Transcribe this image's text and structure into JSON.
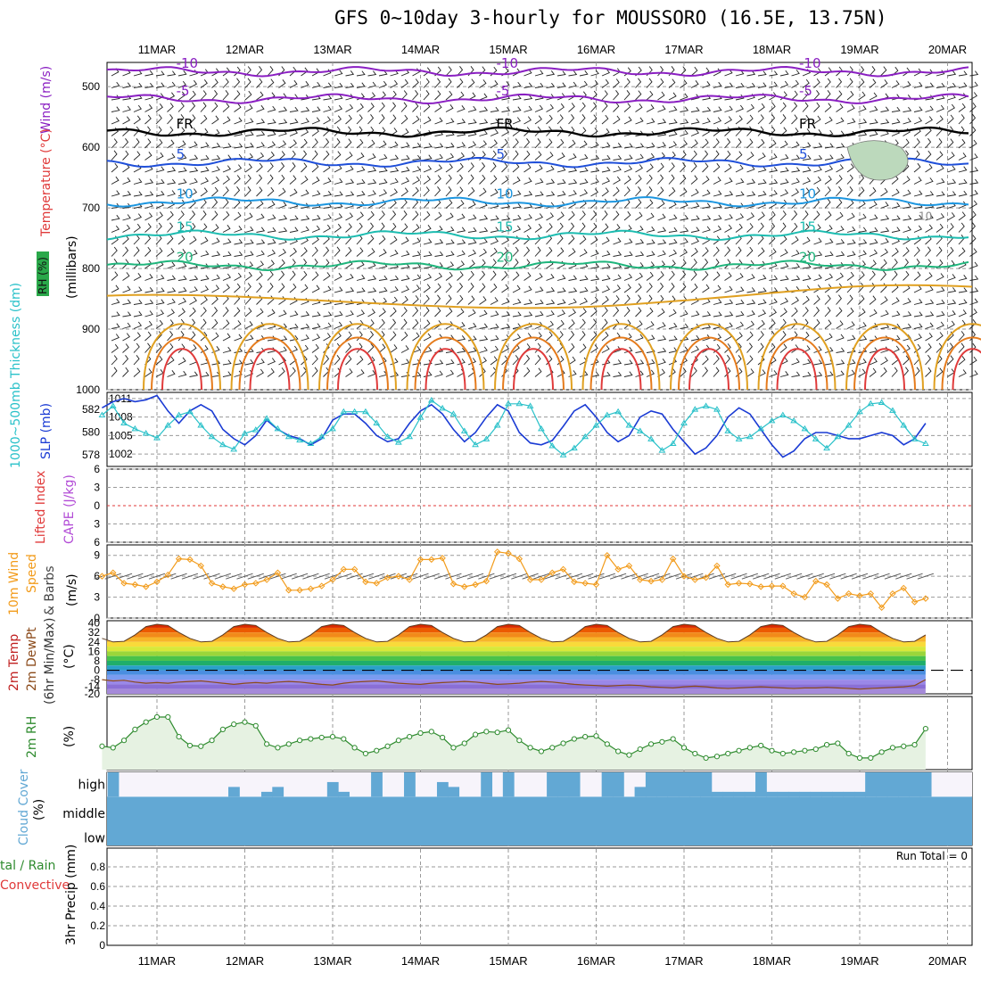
{
  "title": "GFS 0~10day 3-hourly for MOUSSORO (16.5E, 13.75N)",
  "dates": [
    "11MAR",
    "12MAR",
    "13MAR",
    "14MAR",
    "15MAR",
    "16MAR",
    "17MAR",
    "18MAR",
    "19MAR",
    "20MAR"
  ],
  "panel_labels": {
    "wind": "Wind (m/s)",
    "temperature": "Temperature (°C)",
    "rh_upper": "RH (%)",
    "pressure_axis": "(millibars)",
    "thickness": "1000~500mb Thickness (dm)",
    "slp": "SLP (mb)",
    "lifted_index": "Lifted Index",
    "cape": "CAPE (J/kg)",
    "wind10m_a": "10m Wind",
    "wind10m_b": "Speed",
    "wind10m_c": "& Barbs",
    "wind10m_unit": "(m/s)",
    "temp2m_a": "2m Temp",
    "temp2m_b": "2m DewPt",
    "temp2m_c": "(6hr Min/Max)",
    "temp2m_unit": "(°C)",
    "rh2m": "2m RH",
    "rh2m_unit": "(%)",
    "cloud": "Cloud Cover",
    "cloud_unit": "(%)",
    "precip_a": "tal / Rain",
    "precip_b": "Convective",
    "precip_c": "3hr Precip (mm)",
    "run_total": "Run Total = 0"
  },
  "colors": {
    "slp": "#1a3bd4",
    "thickness": "#29c1c9",
    "wind_speed": "#f29b1a",
    "rh2m": "#2e8b2e",
    "cloud": "#62a8d4",
    "minus10": "#8a1fc2",
    "freezing": "#000000",
    "plus5": "#1f4fd9",
    "plus10": "#1c96e0",
    "plus15": "#1cbcb0",
    "plus20": "#1fb57c",
    "plus25": "#e0a020",
    "plus30": "#e57b1c",
    "plus35": "#e03a3a"
  },
  "chart_data": [
    {
      "panel": "upper-air cross section",
      "type": "line",
      "y_axis": "pressure (mb)",
      "yticks": [
        "500",
        "600",
        "700",
        "800",
        "900",
        "1000"
      ],
      "ylim": [
        460,
        1000
      ],
      "temperature_contours": [
        {
          "label": "-10",
          "mean_level_mb": 475
        },
        {
          "label": "-5",
          "mean_level_mb": 520
        },
        {
          "label": "FR",
          "mean_level_mb": 575
        },
        {
          "label": "5",
          "mean_level_mb": 625
        },
        {
          "label": "10",
          "mean_level_mb": 690
        },
        {
          "label": "15",
          "mean_level_mb": 745
        },
        {
          "label": "20",
          "mean_level_mb": 795
        }
      ],
      "rh_contour_label": "10"
    },
    {
      "panel": "SLP and thickness",
      "type": "line",
      "left_axis_ticks": [
        "582",
        "580",
        "578"
      ],
      "right_axis_ticks": [
        "1011",
        "1008",
        "1005",
        "1002"
      ],
      "slp_range": [
        1000,
        1012
      ],
      "thickness_range": [
        577,
        583.5
      ],
      "series": [
        {
          "name": "SLP (mb)",
          "values": [
            1009.5,
            1010.5,
            1011,
            1010.5,
            1010.8,
            1011.5,
            1009,
            1007,
            1009,
            1010,
            1009,
            1006,
            1004.5,
            1003.5,
            1005,
            1007.5,
            1006,
            1005,
            1004.5,
            1003.5,
            1004.5,
            1007.5,
            1008.5,
            1008.5,
            1007,
            1005,
            1004,
            1004.5,
            1007,
            1009,
            1010,
            1008.5,
            1006,
            1004,
            1005.5,
            1008,
            1010,
            1009,
            1005.5,
            1003.8,
            1003.5,
            1004.2,
            1006.5,
            1009,
            1010,
            1008,
            1005.5,
            1004,
            1005,
            1008,
            1009,
            1008.5,
            1006,
            1004,
            1002,
            1003,
            1005,
            1008,
            1009.5,
            1008.5,
            1006,
            1003.5,
            1001.5,
            1002.5,
            1004.5,
            1005.5,
            1005.5,
            1005,
            1004.5,
            1004.5,
            1005,
            1005.5,
            1005,
            1003.5,
            1004.5,
            1007
          ]
        },
        {
          "name": "1000~500mb Thickness (dm)",
          "values": [
            581.5,
            582.3,
            580.8,
            580.3,
            579.9,
            579.5,
            580.6,
            581.5,
            581.8,
            580.6,
            579.6,
            578.9,
            578.5,
            579.9,
            580.2,
            581.2,
            580.3,
            579.6,
            579.3,
            579,
            579.6,
            580.3,
            581.8,
            581.8,
            581.8,
            580.8,
            579.6,
            579.1,
            579.6,
            581.3,
            582.8,
            582.1,
            581.6,
            580.1,
            578.9,
            579.4,
            580.6,
            582.5,
            582.5,
            582.3,
            580.3,
            578.8,
            578,
            578.6,
            579.6,
            580.6,
            581.5,
            581.8,
            580.6,
            580.1,
            579.4,
            578.4,
            579,
            580.8,
            582,
            582.3,
            582,
            580.1,
            579.4,
            579.6,
            580.3,
            581,
            581.5,
            581,
            580.3,
            579.4,
            578.6,
            579.6,
            580.6,
            581.8,
            582.5,
            582.6,
            581.9,
            580.6,
            579.4,
            579
          ]
        }
      ]
    },
    {
      "panel": "Lifted Index / CAPE",
      "type": "line",
      "yticks": [
        "6",
        "3",
        "0",
        "3",
        "6"
      ],
      "values": "none plotted",
      "zero_line": 0
    },
    {
      "panel": "10m wind speed",
      "type": "line",
      "yticks": [
        "9",
        "6",
        "3",
        "0"
      ],
      "ylim": [
        0,
        10.5
      ],
      "series": [
        {
          "name": "Speed",
          "values": [
            6,
            6.5,
            5,
            4.8,
            4.5,
            5.2,
            6.2,
            8.5,
            8.4,
            7.5,
            5,
            4.5,
            4.2,
            4.8,
            5,
            5.5,
            6.5,
            4,
            4,
            4.2,
            4.6,
            5.5,
            7,
            7,
            5.2,
            5,
            5.8,
            6,
            5.5,
            8.4,
            8.4,
            8.6,
            4.9,
            4.5,
            4.8,
            5.3,
            9.5,
            9.3,
            8.5,
            5.5,
            5.5,
            6.5,
            7,
            5.2,
            5,
            4.8,
            9,
            7,
            7.5,
            5.5,
            5.3,
            5.5,
            8.5,
            6,
            5.5,
            5.8,
            7.5,
            4.8,
            5,
            4.9,
            4.5,
            4.6,
            4.6,
            3.5,
            3,
            5.3,
            4.8,
            2.8,
            3.5,
            3.2,
            3.5,
            1.5,
            3.5,
            4.3,
            2.3,
            2.8
          ]
        }
      ]
    },
    {
      "panel": "2m temperature",
      "type": "area",
      "yticks": [
        "40",
        "32",
        "24",
        "16",
        "8",
        "0",
        "-8",
        "-14",
        "-20"
      ],
      "ylim": [
        -20,
        42
      ],
      "series": [
        {
          "name": "2m Temp",
          "values": [
            27,
            24,
            24.5,
            30,
            37,
            39,
            38,
            32,
            27,
            24,
            24.5,
            30,
            37,
            39,
            38,
            32,
            27,
            24,
            24.5,
            30,
            37,
            39,
            38,
            32,
            27,
            24,
            24.5,
            30,
            37,
            39,
            38,
            32,
            27,
            24,
            24.5,
            30,
            37,
            39,
            38,
            32,
            27,
            24,
            24.5,
            30,
            37,
            39,
            38,
            32,
            27,
            24,
            24.5,
            30,
            37,
            39,
            38,
            32,
            27,
            24,
            24.5,
            30,
            37,
            39,
            38,
            32,
            27,
            24,
            24.5,
            30,
            37,
            39,
            38,
            32,
            27,
            24,
            24.5,
            30
          ]
        },
        {
          "name": "2m DewPt",
          "values": [
            -8,
            -9,
            -8.5,
            -10,
            -11,
            -10.5,
            -11,
            -10,
            -9.5,
            -9,
            -10,
            -11,
            -12,
            -11,
            -10.5,
            -11,
            -10,
            -9.5,
            -10,
            -11,
            -12,
            -12.5,
            -11,
            -10,
            -9.5,
            -9,
            -10,
            -11,
            -11.5,
            -12,
            -11,
            -10.5,
            -10,
            -9.5,
            -10,
            -11,
            -12,
            -11.5,
            -11,
            -10,
            -9.5,
            -10,
            -11,
            -12,
            -12.5,
            -13,
            -13.5,
            -13,
            -12.5,
            -13,
            -14,
            -14.5,
            -15,
            -14,
            -13.5,
            -14,
            -15,
            -15.5,
            -15,
            -14.5,
            -14,
            -14.5,
            -15,
            -15.5,
            -15,
            -15,
            -14.5,
            -15,
            -15.5,
            -16,
            -15.5,
            -15,
            -14.5,
            -14,
            -13,
            -8
          ]
        }
      ]
    },
    {
      "panel": "2m RH",
      "type": "area",
      "ylim": [
        0,
        100
      ],
      "series": [
        {
          "name": "2m RH",
          "values": [
            32,
            30,
            40,
            55,
            65,
            72,
            72,
            45,
            33,
            32,
            40,
            55,
            62,
            65,
            60,
            35,
            30,
            35,
            40,
            42,
            44,
            45,
            42,
            30,
            22,
            26,
            32,
            40,
            45,
            50,
            52,
            44,
            30,
            36,
            48,
            52,
            51,
            54,
            40,
            30,
            25,
            30,
            36,
            42,
            45,
            46,
            35,
            25,
            20,
            28,
            35,
            38,
            42,
            30,
            22,
            16,
            18,
            22,
            26,
            30,
            33,
            26,
            22,
            24,
            26,
            28,
            34,
            36,
            22,
            16,
            16,
            24,
            30,
            32,
            34,
            56
          ]
        }
      ]
    },
    {
      "panel": "Cloud Cover",
      "type": "bar",
      "levels": [
        "high",
        "middle",
        "low"
      ],
      "high_fraction_per_step": [
        0,
        100,
        0,
        0,
        0,
        0,
        0,
        0,
        0,
        0,
        0,
        0,
        40,
        0,
        0,
        20,
        40,
        0,
        0,
        0,
        0,
        60,
        20,
        0,
        0,
        100,
        0,
        0,
        100,
        0,
        0,
        60,
        40,
        0,
        0,
        100,
        0,
        100,
        0,
        0,
        0,
        100,
        100,
        100,
        0,
        0,
        100,
        100,
        0,
        40,
        100,
        100,
        100,
        100,
        100,
        100,
        20,
        20,
        20,
        20,
        100,
        20,
        20,
        20,
        20,
        20,
        20,
        20,
        20,
        20,
        100,
        100,
        100,
        100,
        100,
        100
      ],
      "middle_fraction": 100,
      "low_fraction": 100
    },
    {
      "panel": "3hr Precip",
      "type": "bar",
      "yticks": [
        "0.8",
        "0.6",
        "0.4",
        "0.2",
        "0"
      ],
      "ylim": [
        0,
        1
      ],
      "values": "all zero",
      "run_total": 0
    }
  ]
}
